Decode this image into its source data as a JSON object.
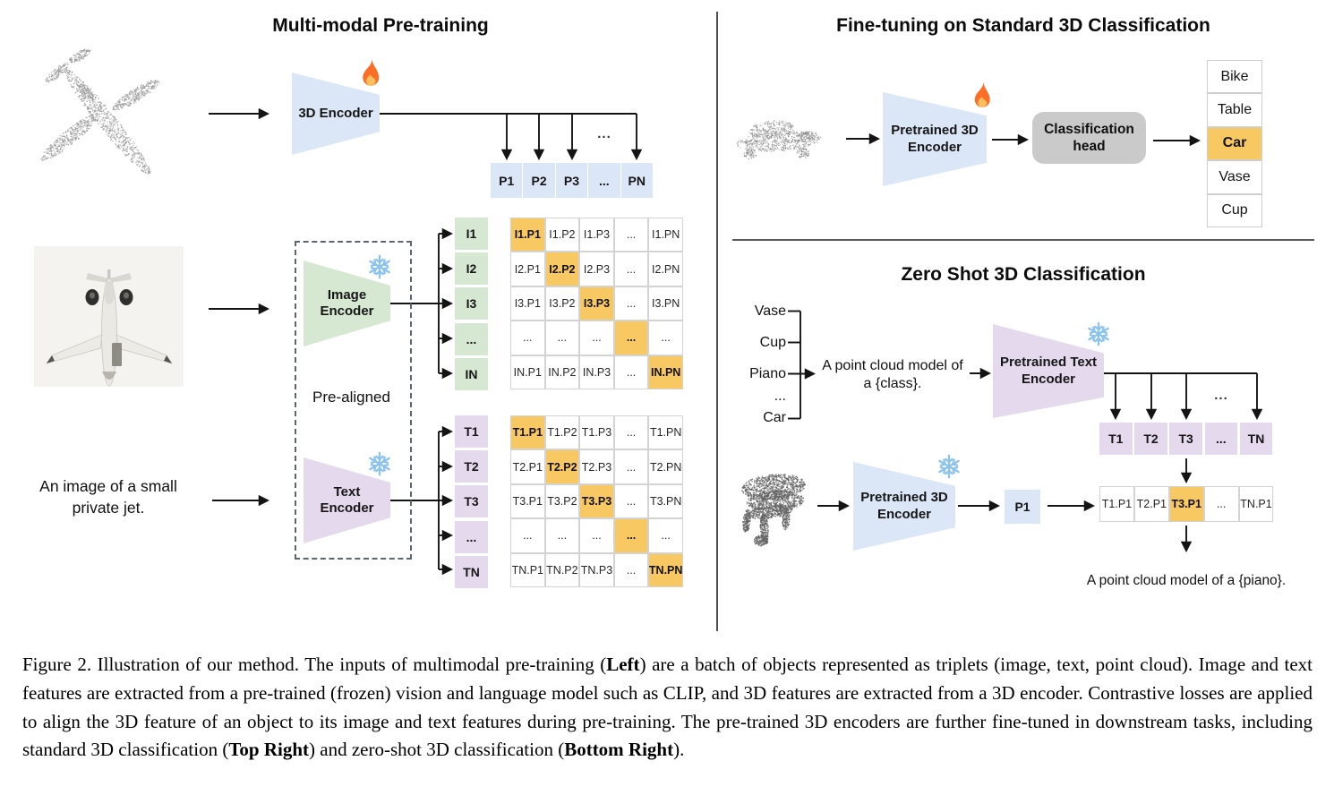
{
  "colors": {
    "blue": "#dbe6f7",
    "green": "#d7e8d2",
    "purple": "#e4d9ed",
    "orange": "#f8c862",
    "head_gray": "#cacaca"
  },
  "icons": {
    "trainable": "fire-icon",
    "frozen": "snowflake-icon"
  },
  "left": {
    "title": "Multi-modal Pre-training",
    "encoder_3d": [
      "3D Encoder"
    ],
    "image_encoder": [
      "Image",
      "Encoder"
    ],
    "text_encoder": [
      "Text",
      "Encoder"
    ],
    "pre_aligned": "Pre-aligned",
    "input_text": "An image of a small private jet.",
    "p_labels": [
      "P1",
      "P2",
      "P3",
      "...",
      "PN"
    ],
    "p_dots": "...",
    "i_labels": [
      "I1",
      "I2",
      "I3",
      "...",
      "IN"
    ],
    "t_labels": [
      "T1",
      "T2",
      "T3",
      "...",
      "TN"
    ],
    "image_matrix": [
      [
        "I1.P1",
        "I1.P2",
        "I1.P3",
        "...",
        "I1.PN"
      ],
      [
        "I2.P1",
        "I2.P2",
        "I2.P3",
        "...",
        "I2.PN"
      ],
      [
        "I3.P1",
        "I3.P2",
        "I3.P3",
        "...",
        "I3.PN"
      ],
      [
        "...",
        "...",
        "...",
        "...",
        "..."
      ],
      [
        "IN.P1",
        "IN.P2",
        "IN.P3",
        "...",
        "IN.PN"
      ]
    ],
    "text_matrix": [
      [
        "T1.P1",
        "T1.P2",
        "T1.P3",
        "...",
        "T1.PN"
      ],
      [
        "T2.P1",
        "T2.P2",
        "T2.P3",
        "...",
        "T2.PN"
      ],
      [
        "T3.P1",
        "T3.P2",
        "T3.P3",
        "...",
        "T3.PN"
      ],
      [
        "...",
        "...",
        "...",
        "...",
        "..."
      ],
      [
        "TN.P1",
        "TN.P2",
        "TN.P3",
        "...",
        "TN.PN"
      ]
    ]
  },
  "fine_tuning": {
    "title": "Fine-tuning on Standard 3D Classification",
    "encoder": [
      "Pretrained 3D",
      "Encoder"
    ],
    "head": [
      "Classification",
      "head"
    ],
    "classes": [
      {
        "label": "Bike",
        "highlighted": false
      },
      {
        "label": "Table",
        "highlighted": false
      },
      {
        "label": "Car",
        "highlighted": true
      },
      {
        "label": "Vase",
        "highlighted": false
      },
      {
        "label": "Cup",
        "highlighted": false
      }
    ]
  },
  "zero_shot": {
    "title": "Zero Shot 3D Classification",
    "classes": [
      "Vase",
      "Cup",
      "Piano",
      "...",
      "Car"
    ],
    "prompt": [
      "A point cloud model of",
      "a {class}."
    ],
    "text_encoder": [
      "Pretrained Text",
      "Encoder"
    ],
    "encoder_3d": [
      "Pretrained 3D",
      "Encoder"
    ],
    "branch_dots": "...",
    "t_labels": [
      "T1",
      "T2",
      "T3",
      "...",
      "TN"
    ],
    "p_label": "P1",
    "result_row": [
      "T1.P1",
      "T2.P1",
      "T3.P1",
      "...",
      "TN.P1"
    ],
    "result_highlight_index": 2,
    "output_text": "A point cloud model of a {piano}."
  },
  "caption": {
    "segments": [
      {
        "text": "Figure 2. Illustration of our method. The inputs of multimodal pre-training (",
        "bold": false
      },
      {
        "text": "Left",
        "bold": true
      },
      {
        "text": ") are a batch of objects represented as triplets (image, text, point cloud).  Image and text features are extracted from a pre-trained (frozen) vision and language model such as CLIP, and 3D features are extracted from a 3D encoder.  Contrastive losses are applied to align the 3D feature of an object to its image and text features during pre-training.  The pre-trained 3D encoders are further fine-tuned in downstream tasks, including standard 3D classification (",
        "bold": false
      },
      {
        "text": "Top Right",
        "bold": true
      },
      {
        "text": ") and zero-shot 3D classification (",
        "bold": false
      },
      {
        "text": "Bottom Right",
        "bold": true
      },
      {
        "text": ").",
        "bold": false
      }
    ]
  }
}
